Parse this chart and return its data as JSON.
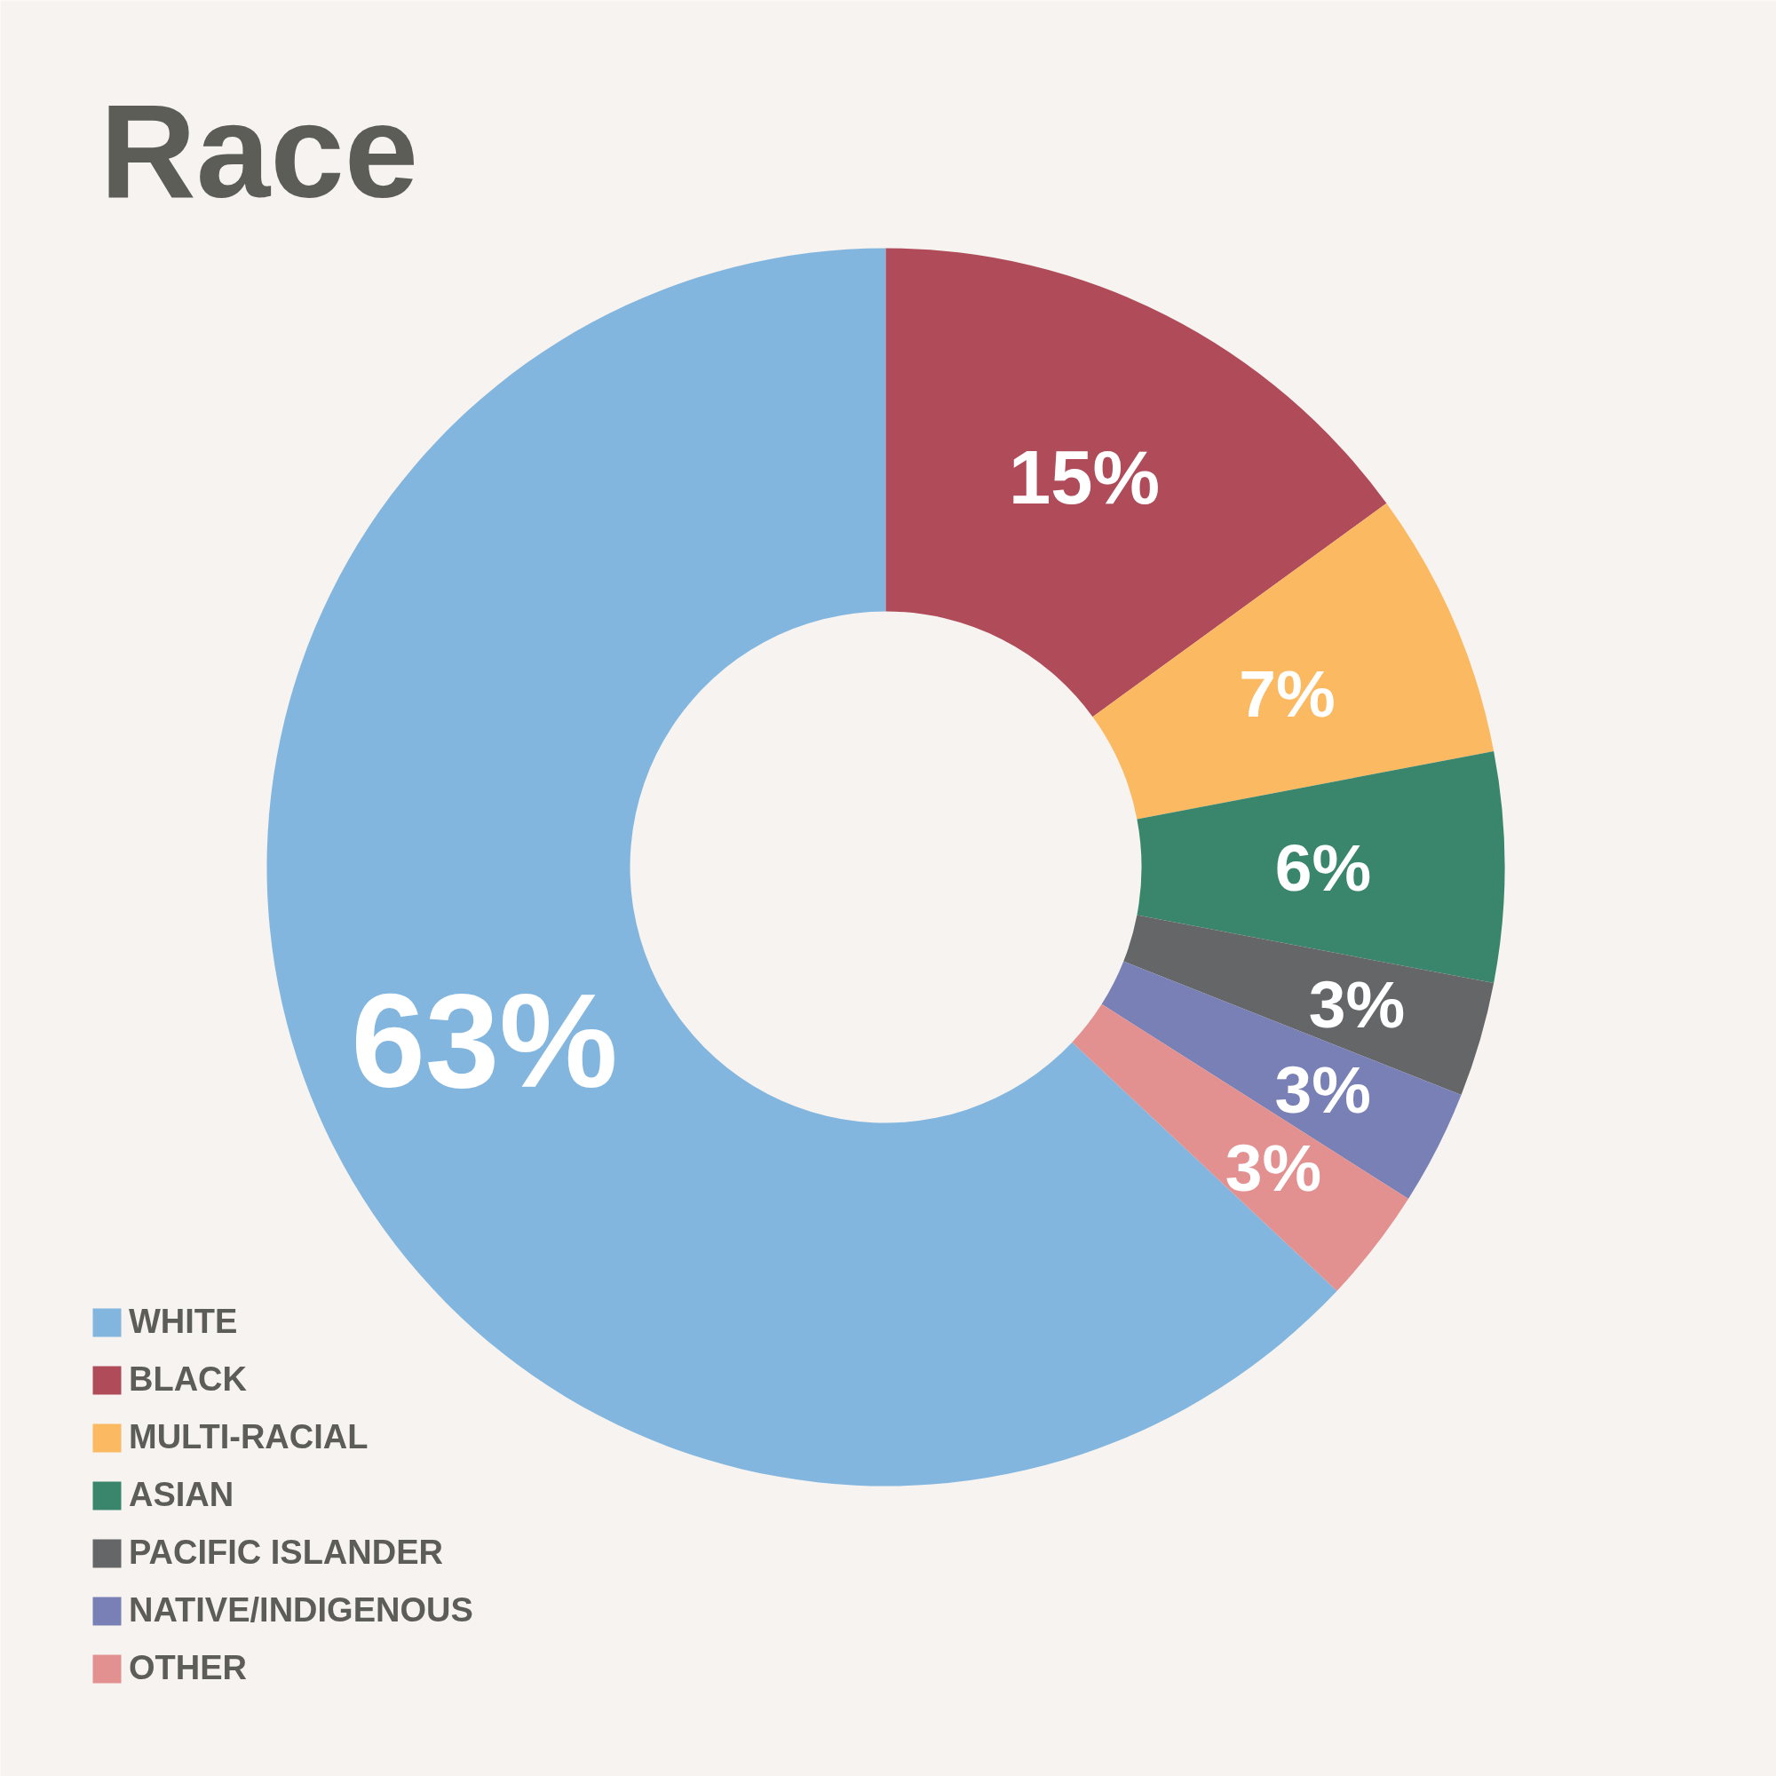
{
  "chart_data": {
    "type": "donut",
    "title": "Race",
    "categories": [
      "WHITE",
      "BLACK",
      "MULTI-RACIAL",
      "ASIAN",
      "PACIFIC ISLANDER",
      "NATIVE/INDIGENOUS",
      "OTHER"
    ],
    "values": [
      63,
      15,
      7,
      6,
      3,
      3,
      3
    ],
    "colors": [
      "#82b6df",
      "#b04b59",
      "#fbb961",
      "#3a866c",
      "#656667",
      "#7880b5",
      "#e39090"
    ],
    "value_labels": [
      "63%",
      "15%",
      "7%",
      "6%",
      "3%",
      "3%",
      "3%"
    ],
    "legend": "bottom left"
  }
}
